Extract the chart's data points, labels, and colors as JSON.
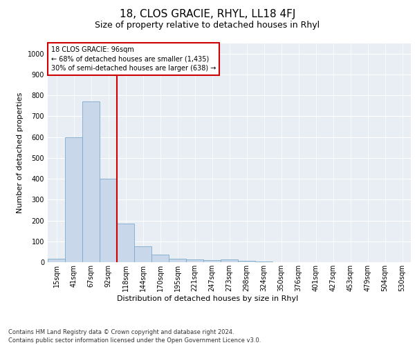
{
  "title": "18, CLOS GRACIE, RHYL, LL18 4FJ",
  "subtitle": "Size of property relative to detached houses in Rhyl",
  "xlabel": "Distribution of detached houses by size in Rhyl",
  "ylabel": "Number of detached properties",
  "footnote": "Contains HM Land Registry data © Crown copyright and database right 2024.\nContains public sector information licensed under the Open Government Licence v3.0.",
  "bin_labels": [
    "15sqm",
    "41sqm",
    "67sqm",
    "92sqm",
    "118sqm",
    "144sqm",
    "170sqm",
    "195sqm",
    "221sqm",
    "247sqm",
    "273sqm",
    "298sqm",
    "324sqm",
    "350sqm",
    "376sqm",
    "401sqm",
    "427sqm",
    "453sqm",
    "479sqm",
    "504sqm",
    "530sqm"
  ],
  "bar_values": [
    15,
    600,
    770,
    400,
    185,
    75,
    38,
    18,
    13,
    10,
    13,
    6,
    3,
    1,
    0,
    0,
    0,
    0,
    0,
    0,
    0
  ],
  "bar_color": "#c8d8ea",
  "bar_edgecolor": "#7aaac8",
  "vline_color": "#cc0000",
  "vline_x_index": 3,
  "annotation_text": "18 CLOS GRACIE: 96sqm\n← 68% of detached houses are smaller (1,435)\n30% of semi-detached houses are larger (638) →",
  "annotation_box_facecolor": "#ffffff",
  "annotation_box_edgecolor": "#cc0000",
  "ylim": [
    0,
    1050
  ],
  "yticks": [
    0,
    100,
    200,
    300,
    400,
    500,
    600,
    700,
    800,
    900,
    1000
  ],
  "title_fontsize": 11,
  "subtitle_fontsize": 9,
  "axis_label_fontsize": 8,
  "tick_fontsize": 7,
  "annotation_fontsize": 7,
  "xlabel_fontsize": 8,
  "footnote_fontsize": 6,
  "fig_bg_color": "#ffffff",
  "plot_bg_color": "#e8eef4"
}
